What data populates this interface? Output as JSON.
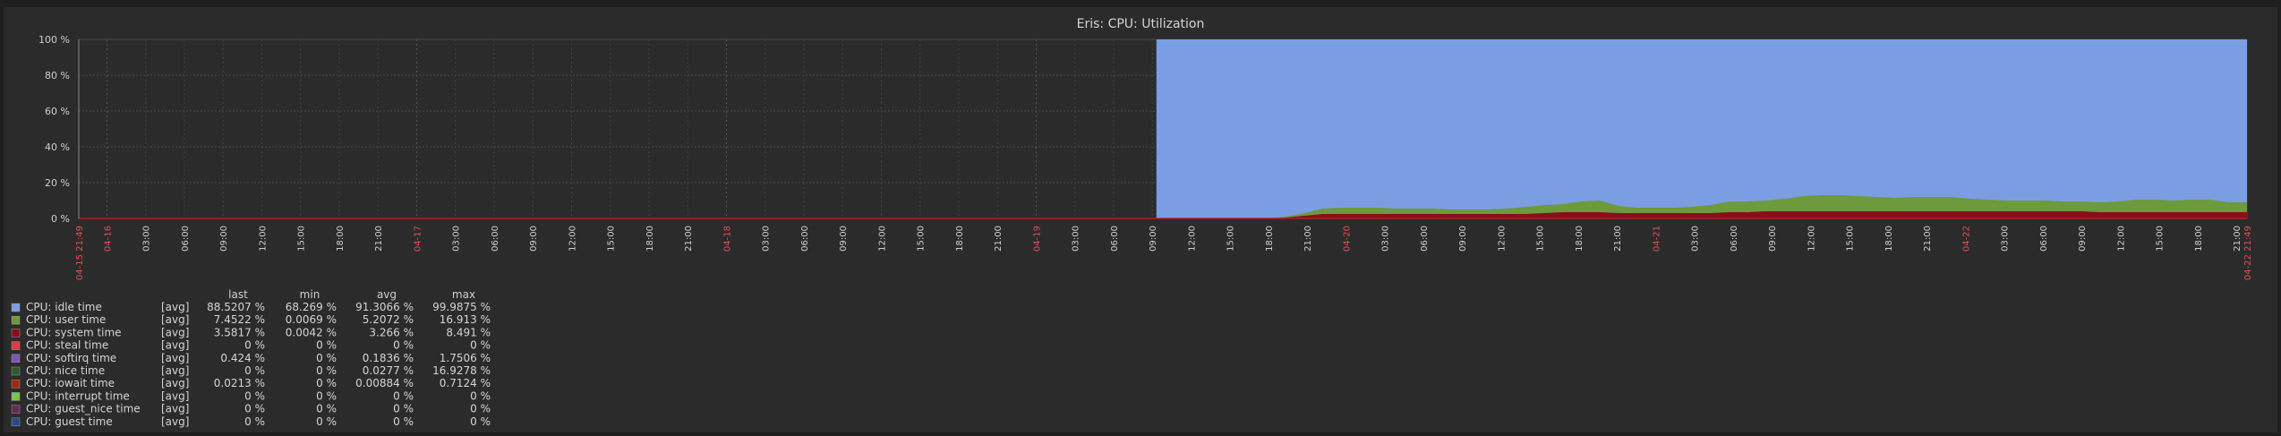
{
  "chart_data": {
    "type": "area",
    "title": "Eris: CPU: Utilization",
    "y_unit": "%",
    "ylim": [
      0,
      100
    ],
    "y_ticks": [
      "100 %",
      "80 %",
      "60 %",
      "40 %",
      "20 %",
      "0 %"
    ],
    "y_tick_values": [
      100,
      80,
      60,
      40,
      20,
      0
    ],
    "x_start_label": "04-15 21:49",
    "x_end_label": "04-22 21:49",
    "x_ticks": [
      {
        "label": "04-16",
        "major": true
      },
      {
        "label": "03:00"
      },
      {
        "label": "06:00"
      },
      {
        "label": "09:00"
      },
      {
        "label": "12:00"
      },
      {
        "label": "15:00"
      },
      {
        "label": "18:00"
      },
      {
        "label": "21:00"
      },
      {
        "label": "04-17",
        "major": true
      },
      {
        "label": "03:00"
      },
      {
        "label": "06:00"
      },
      {
        "label": "09:00"
      },
      {
        "label": "12:00"
      },
      {
        "label": "15:00"
      },
      {
        "label": "18:00"
      },
      {
        "label": "21:00"
      },
      {
        "label": "04-18",
        "major": true
      },
      {
        "label": "03:00"
      },
      {
        "label": "06:00"
      },
      {
        "label": "09:00"
      },
      {
        "label": "12:00"
      },
      {
        "label": "15:00"
      },
      {
        "label": "18:00"
      },
      {
        "label": "21:00"
      },
      {
        "label": "04-19",
        "major": true
      },
      {
        "label": "03:00"
      },
      {
        "label": "06:00"
      },
      {
        "label": "09:00"
      },
      {
        "label": "12:00"
      },
      {
        "label": "15:00"
      },
      {
        "label": "18:00"
      },
      {
        "label": "21:00"
      },
      {
        "label": "04-20",
        "major": true
      },
      {
        "label": "03:00"
      },
      {
        "label": "06:00"
      },
      {
        "label": "09:00"
      },
      {
        "label": "12:00"
      },
      {
        "label": "15:00"
      },
      {
        "label": "18:00"
      },
      {
        "label": "21:00"
      },
      {
        "label": "04-21",
        "major": true
      },
      {
        "label": "03:00"
      },
      {
        "label": "06:00"
      },
      {
        "label": "09:00"
      },
      {
        "label": "12:00"
      },
      {
        "label": "15:00"
      },
      {
        "label": "18:00"
      },
      {
        "label": "21:00"
      },
      {
        "label": "04-22",
        "major": true
      },
      {
        "label": "03:00"
      },
      {
        "label": "06:00"
      },
      {
        "label": "09:00"
      },
      {
        "label": "12:00"
      },
      {
        "label": "15:00"
      },
      {
        "label": "18:00"
      },
      {
        "label": "21:00"
      }
    ],
    "data_start_hour": 83.5,
    "sample_step_hours": 3,
    "series": [
      {
        "name": "CPU: idle time",
        "color": "#7b9ee2"
      },
      {
        "name": "CPU: user time",
        "color": "#6c9a3c",
        "values": [
          0,
          0,
          0,
          0,
          0,
          0,
          0,
          0.5,
          1.5,
          3,
          3.5,
          3.5,
          3.5,
          3,
          3,
          3,
          2.5,
          2.5,
          2.5,
          3,
          4,
          4.5,
          4.5,
          6,
          6.5,
          4,
          3,
          3,
          3,
          3.5,
          4.5,
          6,
          6,
          6,
          7,
          8.5,
          9,
          9,
          8.5,
          8,
          7.5,
          8,
          8,
          8,
          7,
          6.5,
          6,
          6,
          6,
          5.5,
          5.5,
          5.5,
          6,
          7,
          7,
          6.5,
          7,
          7,
          5.5,
          5.5
        ]
      },
      {
        "name": "CPU: system time",
        "color": "#8a0e1a",
        "values": [
          0,
          0,
          0,
          0,
          0,
          0,
          0,
          0.5,
          1.5,
          2.5,
          2.5,
          2.5,
          2.5,
          2.5,
          2.5,
          2.5,
          2.5,
          2.5,
          2.5,
          2.5,
          2.5,
          3,
          3.5,
          3.5,
          3.5,
          3,
          3,
          3,
          3,
          3,
          3,
          3.5,
          3.5,
          4,
          4,
          4,
          4,
          4,
          4,
          4,
          4,
          4,
          4,
          4,
          4,
          4,
          4,
          4,
          4,
          4,
          4,
          3.5,
          3.5,
          3.5,
          3.5,
          3.5,
          3.5,
          3.5,
          3.5,
          3.5
        ]
      },
      {
        "name": "CPU: steal time",
        "color": "#e03a3e"
      },
      {
        "name": "CPU: softirq time",
        "color": "#7a57b5"
      },
      {
        "name": "CPU: nice time",
        "color": "#2c5a2c"
      },
      {
        "name": "CPU: iowait time",
        "color": "#9c2a0c"
      },
      {
        "name": "CPU: interrupt time",
        "color": "#7cc24a"
      },
      {
        "name": "CPU: guest_nice time",
        "color": "#6a2a52"
      },
      {
        "name": "CPU: guest time",
        "color": "#2a4a86"
      }
    ]
  },
  "legend": {
    "headers": {
      "last": "last",
      "min": "min",
      "avg": "avg",
      "max": "max"
    },
    "rows": [
      {
        "name": "CPU: idle time",
        "func": "[avg]",
        "last": "88.5207 %",
        "min": "68.269 %",
        "avg": "91.3066 %",
        "max": "99.9875 %",
        "color": "#7b9ee2"
      },
      {
        "name": "CPU: user time",
        "func": "[avg]",
        "last": "7.4522 %",
        "min": "0.0069 %",
        "avg": "5.2072 %",
        "max": "16.913 %",
        "color": "#6c9a3c"
      },
      {
        "name": "CPU: system time",
        "func": "[avg]",
        "last": "3.5817 %",
        "min": "0.0042 %",
        "avg": "3.266 %",
        "max": "8.491 %",
        "color": "#8a0e1a"
      },
      {
        "name": "CPU: steal time",
        "func": "[avg]",
        "last": "0 %",
        "min": "0 %",
        "avg": "0 %",
        "max": "0 %",
        "color": "#e03a3e"
      },
      {
        "name": "CPU: softirq time",
        "func": "[avg]",
        "last": "0.424 %",
        "min": "0 %",
        "avg": "0.1836 %",
        "max": "1.7506 %",
        "color": "#7a57b5"
      },
      {
        "name": "CPU: nice time",
        "func": "[avg]",
        "last": "0 %",
        "min": "0 %",
        "avg": "0.0277 %",
        "max": "16.9278 %",
        "color": "#2c5a2c"
      },
      {
        "name": "CPU: iowait time",
        "func": "[avg]",
        "last": "0.0213 %",
        "min": "0 %",
        "avg": "0.00884 %",
        "max": "0.7124 %",
        "color": "#9c2a0c"
      },
      {
        "name": "CPU: interrupt time",
        "func": "[avg]",
        "last": "0 %",
        "min": "0 %",
        "avg": "0 %",
        "max": "0 %",
        "color": "#7cc24a"
      },
      {
        "name": "CPU: guest_nice time",
        "func": "[avg]",
        "last": "0 %",
        "min": "0 %",
        "avg": "0 %",
        "max": "0 %",
        "color": "#6a2a52"
      },
      {
        "name": "CPU: guest time",
        "func": "[avg]",
        "last": "0 %",
        "min": "0 %",
        "avg": "0 %",
        "max": "0 %",
        "color": "#2a4a86"
      }
    ]
  }
}
